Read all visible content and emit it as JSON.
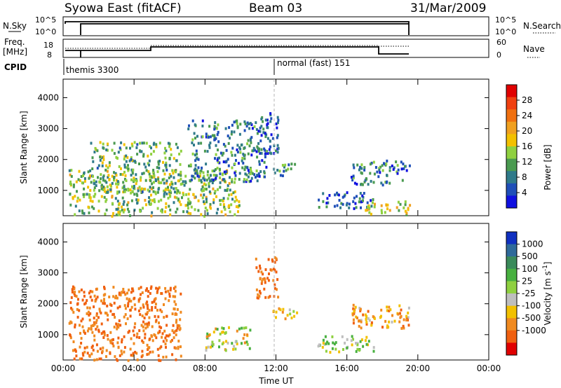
{
  "header": {
    "title": "Syowa East (fitACF)",
    "beam": "Beam 03",
    "date": "31/Mar/2009"
  },
  "status": {
    "nsky_label": "N.Sky",
    "nsky_ticks": [
      "10^5",
      "10^0"
    ],
    "nsearch_label": "N.Search",
    "freq_label_line1": "Freq.",
    "freq_label_line2": "[MHz]",
    "freq_ticks": [
      "18",
      "8"
    ],
    "nave_label": "Nave",
    "nave_ticks": [
      "60",
      "0"
    ],
    "cpid_label": "CPID",
    "programs": [
      {
        "name": "themis 3300",
        "start_hour": 0.0
      },
      {
        "name": "normal (fast) 151",
        "start_hour": 12.0
      }
    ]
  },
  "chart_data": [
    {
      "type": "heatmap",
      "panel": "power",
      "ylabel": "Slant Range [km]",
      "xlabel": "",
      "x_ticks": [
        "00:00",
        "04:00",
        "08:00",
        "12:00",
        "16:00",
        "20:00",
        "00:00"
      ],
      "x_tick_hours": [
        0,
        4,
        8,
        12,
        16,
        20,
        24
      ],
      "xlim": [
        0,
        24
      ],
      "ylim": [
        180,
        4600
      ],
      "y_ticks": [
        1000,
        2000,
        3000,
        4000
      ],
      "colorbar": {
        "label": "Power [dB]",
        "ticks": [
          "4",
          "8",
          "12",
          "16",
          "20",
          "24",
          "28"
        ],
        "colors": [
          "#1010e0",
          "#1f4fb8",
          "#2f7a8a",
          "#4a9a50",
          "#8fd040",
          "#f2c000",
          "#f0a020",
          "#f07010",
          "#f04010",
          "#e00000"
        ]
      },
      "echo_regions": [
        {
          "t_start": 0.3,
          "t_end": 9.9,
          "r_min": 200,
          "r_max": 1700,
          "mean": 14
        },
        {
          "t_start": 1.5,
          "t_end": 6.6,
          "r_min": 900,
          "r_max": 2600,
          "mean": 12
        },
        {
          "t_start": 7.0,
          "t_end": 11.5,
          "r_min": 1300,
          "r_max": 3300,
          "mean": 8
        },
        {
          "t_start": 10.8,
          "t_end": 12.1,
          "r_min": 2200,
          "r_max": 3550,
          "mean": 6
        },
        {
          "t_start": 11.8,
          "t_end": 13.2,
          "r_min": 1500,
          "r_max": 1900,
          "mean": 10
        },
        {
          "t_start": 14.3,
          "t_end": 17.5,
          "r_min": 450,
          "r_max": 1000,
          "mean": 6
        },
        {
          "t_start": 16.2,
          "t_end": 19.5,
          "r_min": 1200,
          "r_max": 2000,
          "mean": 8
        },
        {
          "t_start": 17.0,
          "t_end": 19.6,
          "r_min": 250,
          "r_max": 700,
          "mean": 16
        }
      ]
    },
    {
      "type": "heatmap",
      "panel": "velocity",
      "ylabel": "Slant Range [km]",
      "xlabel": "Time UT",
      "x_ticks": [
        "00:00",
        "04:00",
        "08:00",
        "12:00",
        "16:00",
        "20:00",
        "00:00"
      ],
      "x_tick_hours": [
        0,
        4,
        8,
        12,
        16,
        20,
        24
      ],
      "xlim": [
        0,
        24
      ],
      "ylim": [
        180,
        4600
      ],
      "y_ticks": [
        1000,
        2000,
        3000,
        4000
      ],
      "colorbar": {
        "label": "Velocity [m s^-1]",
        "ticks": [
          "1000",
          "500",
          "100",
          "25",
          "-25",
          "-100",
          "-500",
          "-1000"
        ],
        "colors": [
          "#1030c0",
          "#2f6a9a",
          "#3a8a5a",
          "#48b040",
          "#8fd040",
          "#bebebe",
          "#f2c000",
          "#f08a20",
          "#f06010",
          "#e00000"
        ]
      },
      "echo_regions": [
        {
          "t_start": 0.3,
          "t_end": 6.6,
          "r_min": 200,
          "r_max": 2600,
          "mean": -250
        },
        {
          "t_start": 8.0,
          "t_end": 10.5,
          "r_min": 500,
          "r_max": 1300,
          "mean": 0
        },
        {
          "t_start": 10.8,
          "t_end": 12.1,
          "r_min": 2200,
          "r_max": 3550,
          "mean": -300
        },
        {
          "t_start": 11.8,
          "t_end": 13.2,
          "r_min": 1500,
          "r_max": 1900,
          "mean": -100
        },
        {
          "t_start": 14.3,
          "t_end": 17.5,
          "r_min": 450,
          "r_max": 1000,
          "mean": 60
        },
        {
          "t_start": 16.2,
          "t_end": 19.5,
          "r_min": 1200,
          "r_max": 2000,
          "mean": -150
        }
      ]
    }
  ]
}
